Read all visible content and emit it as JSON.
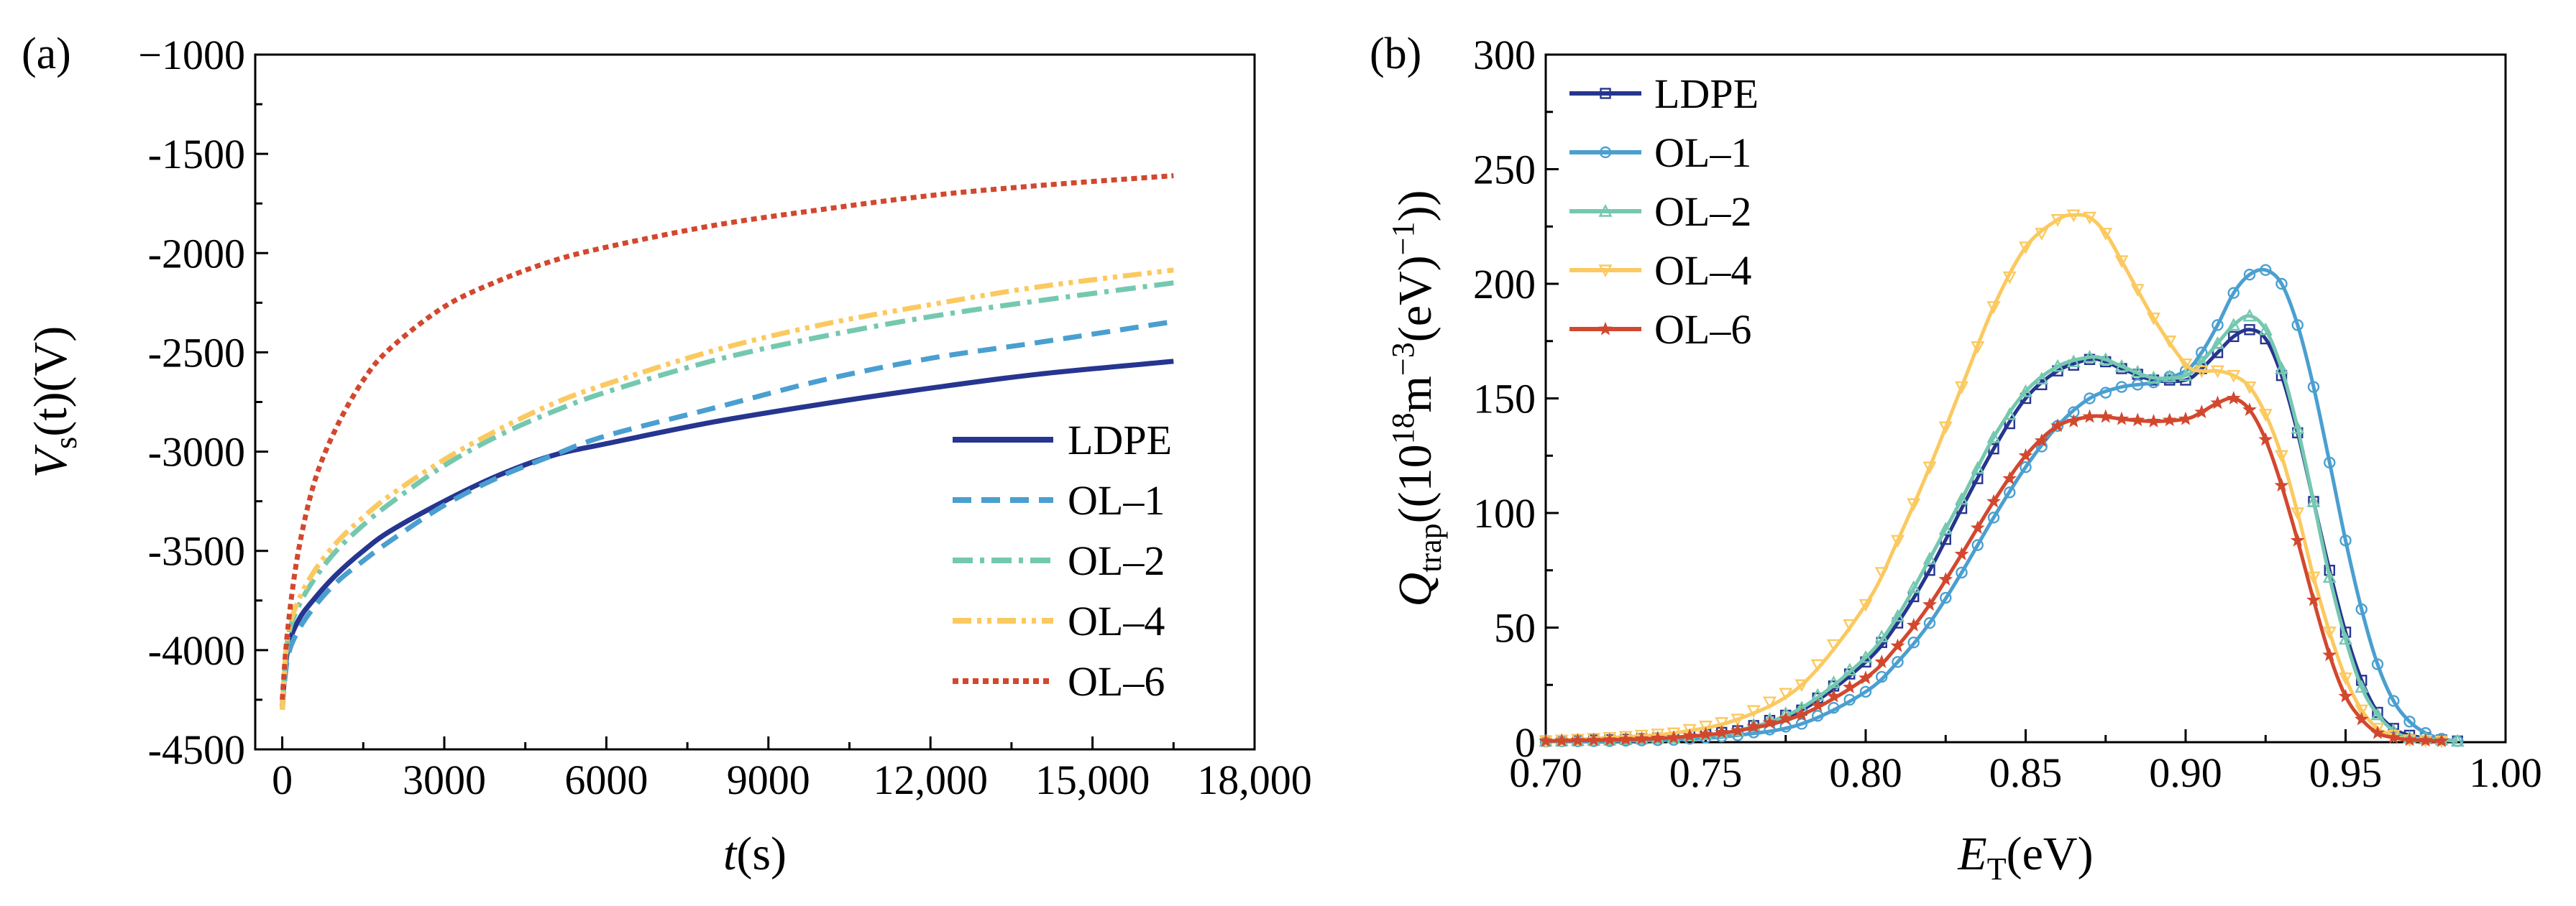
{
  "chart_data": [
    {
      "panel": "(a)",
      "type": "line",
      "xlabel": {
        "main": "t",
        "unit": "(s)"
      },
      "ylabel": {
        "main": "V",
        "sub": "s",
        "rest": "(t)(V)"
      },
      "xlim": [
        -500,
        18000
      ],
      "ylim": [
        -4500,
        -1000
      ],
      "xticks": [
        0,
        3000,
        6000,
        9000,
        12000,
        15000,
        18000
      ],
      "xtick_labels": [
        "0",
        "3000",
        "6000",
        "9000",
        "12,000",
        "15,000",
        "18,000"
      ],
      "yticks": [
        -1000,
        -1500,
        -2000,
        -2500,
        -3000,
        -3500,
        -4000,
        -4500
      ],
      "ytick_labels": [
        "−1000",
        "-1500",
        "-2000",
        "-2500",
        "-3000",
        "-3500",
        "-4000",
        "-4500"
      ],
      "legend_position": "bottom-right",
      "series": [
        {
          "name": "LDPE",
          "color": "#26358f",
          "dash": "solid",
          "x": [
            0,
            100,
            300,
            600,
            1000,
            1500,
            2000,
            3000,
            4000,
            5000,
            6000,
            8000,
            10000,
            12000,
            14000,
            16500
          ],
          "y": [
            -4280,
            -4000,
            -3850,
            -3740,
            -3620,
            -3500,
            -3400,
            -3250,
            -3120,
            -3020,
            -2960,
            -2850,
            -2760,
            -2680,
            -2610,
            -2545
          ]
        },
        {
          "name": "OL–1",
          "color": "#4a9fd0",
          "dash": "dashed",
          "x": [
            0,
            100,
            300,
            600,
            1000,
            1500,
            2000,
            3000,
            4000,
            5000,
            6000,
            8000,
            10000,
            12000,
            14000,
            16500
          ],
          "y": [
            -4300,
            -4040,
            -3900,
            -3780,
            -3660,
            -3550,
            -3450,
            -3270,
            -3130,
            -3020,
            -2920,
            -2780,
            -2640,
            -2530,
            -2450,
            -2345
          ]
        },
        {
          "name": "OL–2",
          "color": "#74c8b0",
          "dash": "dashdot",
          "x": [
            0,
            100,
            300,
            600,
            1000,
            1500,
            2000,
            3000,
            4000,
            5000,
            6000,
            8000,
            10000,
            12000,
            14000,
            16500
          ],
          "y": [
            -4300,
            -3950,
            -3780,
            -3640,
            -3500,
            -3370,
            -3260,
            -3070,
            -2920,
            -2800,
            -2700,
            -2540,
            -2420,
            -2320,
            -2240,
            -2150
          ]
        },
        {
          "name": "OL–4",
          "color": "#fbc95f",
          "dash": "dashdotdot",
          "x": [
            0,
            100,
            300,
            600,
            1000,
            1500,
            2000,
            3000,
            4000,
            5000,
            6000,
            8000,
            10000,
            12000,
            14000,
            16500
          ],
          "y": [
            -4300,
            -3930,
            -3750,
            -3600,
            -3460,
            -3330,
            -3220,
            -3040,
            -2890,
            -2760,
            -2660,
            -2490,
            -2360,
            -2260,
            -2170,
            -2085
          ]
        },
        {
          "name": "OL–6",
          "color": "#d2482e",
          "dash": "dotted",
          "x": [
            0,
            100,
            300,
            600,
            1000,
            1500,
            2000,
            3000,
            4000,
            5000,
            6000,
            8000,
            10000,
            12000,
            14000,
            16500
          ],
          "y": [
            -4250,
            -3900,
            -3500,
            -3150,
            -2880,
            -2640,
            -2480,
            -2270,
            -2140,
            -2040,
            -1970,
            -1860,
            -1780,
            -1710,
            -1660,
            -1610
          ]
        }
      ]
    },
    {
      "panel": "(b)",
      "type": "line",
      "xlabel": {
        "main": "E",
        "sub": "T",
        "unit": "(eV)"
      },
      "ylabel": {
        "main": "Q",
        "sub": "trap",
        "pre": "((10",
        "sup1": "18",
        "mid": "m",
        "sup2": "−3",
        "mid2": "(eV)",
        "sup3": "−1",
        "post": "))"
      },
      "xlim": [
        0.7,
        1.0
      ],
      "ylim": [
        0,
        300
      ],
      "xticks": [
        0.7,
        0.75,
        0.8,
        0.85,
        0.9,
        0.95,
        1.0
      ],
      "xtick_labels": [
        "0.70",
        "0.75",
        "0.80",
        "0.85",
        "0.90",
        "0.95",
        "1.00"
      ],
      "yticks": [
        0,
        50,
        100,
        150,
        200,
        250,
        300
      ],
      "ytick_labels": [
        "0",
        "50",
        "100",
        "150",
        "200",
        "250",
        "300"
      ],
      "legend_position": "top-left",
      "series": [
        {
          "name": "LDPE",
          "color": "#26358f",
          "marker": "square",
          "x": [
            0.7,
            0.72,
            0.74,
            0.76,
            0.78,
            0.8,
            0.81,
            0.82,
            0.83,
            0.84,
            0.85,
            0.86,
            0.87,
            0.875,
            0.88,
            0.89,
            0.9,
            0.905,
            0.91,
            0.915,
            0.92,
            0.925,
            0.93,
            0.935,
            0.94,
            0.945,
            0.95,
            0.955,
            0.96,
            0.965,
            0.97,
            0.98,
            0.985
          ],
          "y": [
            0.5,
            1,
            2,
            5,
            14,
            35,
            52,
            75,
            102,
            128,
            150,
            162,
            167,
            166,
            163,
            158,
            158,
            163,
            170,
            177,
            180,
            176,
            160,
            135,
            105,
            75,
            48,
            27,
            13,
            6,
            3,
            1,
            0.5
          ]
        },
        {
          "name": "OL–1",
          "color": "#4a9fd0",
          "marker": "circle",
          "x": [
            0.7,
            0.72,
            0.74,
            0.76,
            0.78,
            0.8,
            0.81,
            0.82,
            0.83,
            0.84,
            0.85,
            0.86,
            0.87,
            0.88,
            0.89,
            0.9,
            0.905,
            0.91,
            0.915,
            0.92,
            0.925,
            0.93,
            0.935,
            0.94,
            0.945,
            0.95,
            0.955,
            0.96,
            0.965,
            0.97,
            0.975,
            0.98,
            0.985
          ],
          "y": [
            0.3,
            0.5,
            1,
            3,
            8,
            22,
            35,
            52,
            74,
            98,
            120,
            138,
            150,
            155,
            157,
            162,
            170,
            182,
            196,
            204,
            206,
            200,
            182,
            155,
            122,
            88,
            58,
            34,
            18,
            9,
            4,
            1.5,
            0.5
          ]
        },
        {
          "name": "OL–2",
          "color": "#74c8b0",
          "marker": "triangle-up",
          "x": [
            0.7,
            0.72,
            0.74,
            0.76,
            0.78,
            0.8,
            0.81,
            0.82,
            0.83,
            0.84,
            0.85,
            0.86,
            0.87,
            0.875,
            0.88,
            0.89,
            0.9,
            0.905,
            0.91,
            0.915,
            0.92,
            0.925,
            0.93,
            0.935,
            0.94,
            0.945,
            0.95,
            0.955,
            0.96,
            0.965,
            0.97,
            0.98,
            0.985
          ],
          "y": [
            0.5,
            1,
            2,
            5,
            15,
            37,
            55,
            80,
            106,
            133,
            153,
            164,
            168,
            167,
            164,
            159,
            160,
            166,
            174,
            182,
            186,
            180,
            163,
            137,
            105,
            72,
            45,
            24,
            12,
            5,
            2,
            1,
            0.5
          ]
        },
        {
          "name": "OL–4",
          "color": "#fbc95f",
          "marker": "triangle-down",
          "x": [
            0.7,
            0.72,
            0.74,
            0.76,
            0.78,
            0.8,
            0.81,
            0.82,
            0.83,
            0.84,
            0.85,
            0.86,
            0.865,
            0.87,
            0.875,
            0.88,
            0.89,
            0.9,
            0.905,
            0.91,
            0.915,
            0.92,
            0.925,
            0.93,
            0.935,
            0.94,
            0.945,
            0.95,
            0.955,
            0.96,
            0.965,
            0.97,
            0.98
          ],
          "y": [
            0.5,
            2,
            4,
            10,
            25,
            60,
            88,
            120,
            155,
            190,
            216,
            228,
            230,
            229,
            222,
            210,
            185,
            165,
            162,
            162,
            160,
            155,
            143,
            125,
            100,
            72,
            48,
            28,
            14,
            6,
            3,
            1,
            0.5
          ]
        },
        {
          "name": "OL–6",
          "color": "#d2482e",
          "marker": "star",
          "x": [
            0.7,
            0.72,
            0.74,
            0.76,
            0.78,
            0.8,
            0.81,
            0.82,
            0.83,
            0.84,
            0.85,
            0.86,
            0.87,
            0.875,
            0.88,
            0.89,
            0.9,
            0.905,
            0.91,
            0.915,
            0.92,
            0.925,
            0.93,
            0.935,
            0.94,
            0.945,
            0.95,
            0.955,
            0.96,
            0.965,
            0.97,
            0.98
          ],
          "y": [
            0.5,
            1,
            2,
            5,
            12,
            28,
            42,
            60,
            82,
            105,
            125,
            138,
            142,
            142,
            141,
            140,
            141,
            144,
            148,
            150,
            145,
            132,
            112,
            88,
            62,
            38,
            20,
            10,
            4,
            2,
            1,
            0.5
          ]
        }
      ]
    }
  ]
}
